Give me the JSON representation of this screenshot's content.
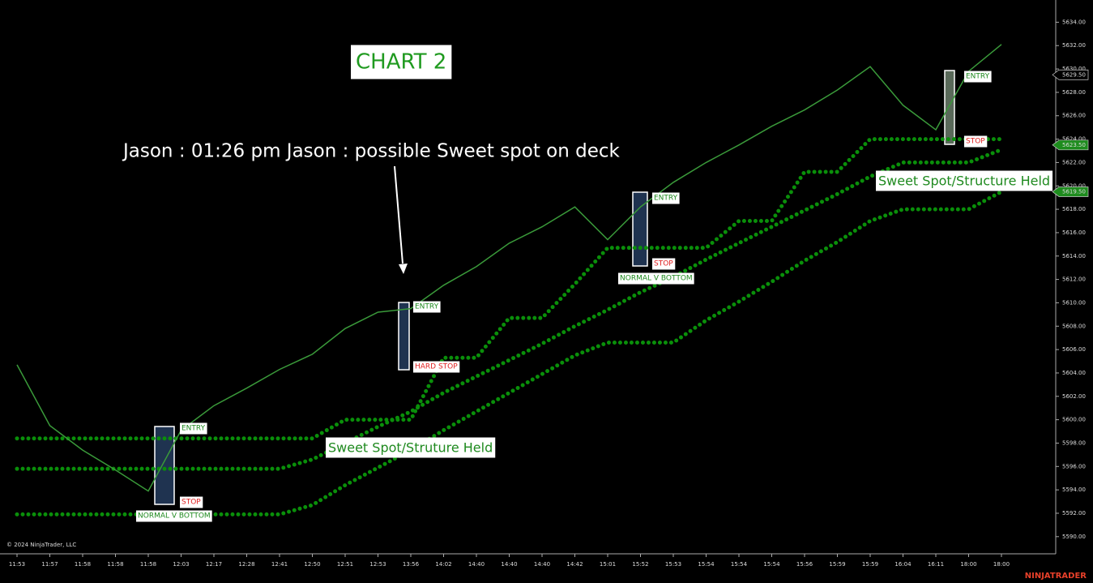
{
  "chart_data": {
    "type": "line",
    "annotations": [
      "CHART 2",
      "Jason : 01:26 pm Jason : possible Sweet spot on deck",
      "ENTRY",
      "STOP",
      "NORMAL V BOTTOM",
      "ENTRY",
      "HARD STOP",
      "ENTRY",
      "STOP",
      "NORMAL V BOTTOM",
      "ENTRY",
      "STOP",
      "Sweet Spot/Struture Held",
      "Sweet Spot/Structure Held"
    ],
    "copyright": "© 2024 NinjaTrader, LLC",
    "brand": "NINJATRADER",
    "categories": [
      "11:53",
      "11:57",
      "11:58",
      "11:58",
      "11:58",
      "12:03",
      "12:17",
      "12:28",
      "12:41",
      "12:50",
      "12:51",
      "12:53",
      "13:56",
      "14:02",
      "14:40",
      "14:40",
      "14:40",
      "14:42",
      "15:01",
      "15:52",
      "15:53",
      "15:54",
      "15:54",
      "15:54",
      "15:56",
      "15:59",
      "15:59",
      "16:04",
      "16:11",
      "18:00",
      "18:00"
    ],
    "series": [
      {
        "color": "#3a9a3a",
        "values": [
          5604.7,
          5599.5,
          5597.4,
          5595.7,
          5593.9,
          5599.1,
          5601.2,
          5602.7,
          5604.3,
          5605.6,
          5607.8,
          5609.2,
          5609.5,
          5611.5,
          5613.1,
          5615.1,
          5616.5,
          5618.2,
          5615.4,
          5618.2,
          5620.3,
          5622.0,
          5623.5,
          5625.1,
          5626.5,
          5628.2,
          5630.2,
          5626.9,
          5624.8,
          5629.8,
          5632.1
        ]
      },
      {
        "color": "#0a8f0a",
        "values": [
          5598.4,
          5598.4,
          5598.4,
          5598.4,
          5598.4,
          5598.4,
          5598.4,
          5598.4,
          5598.4,
          5598.4,
          5600,
          5600,
          5600,
          5605.3,
          5605.3,
          5608.7,
          5608.7,
          5611.6,
          5614.7,
          5614.7,
          5614.7,
          5614.7,
          5617,
          5617,
          5621.2,
          5621.2,
          5624,
          5624,
          5624,
          5624,
          5624
        ]
      },
      {
        "color": "#0a8f0a",
        "values": [
          5595.8,
          5595.8,
          5595.8,
          5595.8,
          5595.8,
          5595.8,
          5595.8,
          5595.8,
          5595.8,
          5596.6,
          5598.0,
          5599.4,
          5600.7,
          5602.3,
          5603.7,
          5605.1,
          5606.5,
          5608.0,
          5609.4,
          5610.9,
          5612.2,
          5613.7,
          5615.1,
          5616.5,
          5617.9,
          5619.3,
          5620.8,
          5622,
          5622,
          5622,
          5623.1
        ]
      },
      {
        "color": "#0a8f0a",
        "values": [
          5591.9,
          5591.9,
          5591.9,
          5591.9,
          5591.9,
          5591.9,
          5591.9,
          5591.9,
          5591.9,
          5592.7,
          5594.4,
          5595.9,
          5597.4,
          5599.1,
          5600.7,
          5602.3,
          5603.9,
          5605.5,
          5606.6,
          5606.6,
          5606.6,
          5608.5,
          5610.1,
          5611.8,
          5613.6,
          5615.2,
          5617.0,
          5618,
          5618,
          5618,
          5619.5
        ]
      }
    ],
    "ylim": [
      5588.6,
      5635.9
    ],
    "yticks": [
      {
        "value": 5590,
        "label": "5590.00"
      },
      {
        "value": 5592,
        "label": "5592.00"
      },
      {
        "value": 5594,
        "label": "5594.00"
      },
      {
        "value": 5596,
        "label": "5596.00"
      },
      {
        "value": 5598,
        "label": "5598.00"
      },
      {
        "value": 5600,
        "label": "5600.00"
      },
      {
        "value": 5602,
        "label": "5602.00"
      },
      {
        "value": 5604,
        "label": "5604.00"
      },
      {
        "value": 5606,
        "label": "5606.00"
      },
      {
        "value": 5608,
        "label": "5608.00"
      },
      {
        "value": 5610,
        "label": "5610.00"
      },
      {
        "value": 5612,
        "label": "5612.00"
      },
      {
        "value": 5614,
        "label": "5614.00"
      },
      {
        "value": 5616,
        "label": "5616.00"
      },
      {
        "value": 5618,
        "label": "5618.00"
      },
      {
        "value": 5620,
        "label": "5620.00"
      },
      {
        "value": 5622,
        "label": "5622.00"
      },
      {
        "value": 5624,
        "label": "5624.00"
      },
      {
        "value": 5626,
        "label": "5626.00"
      },
      {
        "value": 5628,
        "label": "5628.00"
      },
      {
        "value": 5630,
        "label": "5630.00"
      },
      {
        "value": 5632,
        "label": "5632.00"
      },
      {
        "value": 5634,
        "label": "5634.00"
      }
    ],
    "price_markers": [
      {
        "value": 5629.5,
        "label": "5629.50",
        "color": "#000000"
      },
      {
        "value": 5623.5,
        "label": "5623.50",
        "color": "#1e8c1e"
      },
      {
        "value": 5619.5,
        "label": "5619.50",
        "color": "#1e8c1e"
      }
    ],
    "grid": false
  }
}
